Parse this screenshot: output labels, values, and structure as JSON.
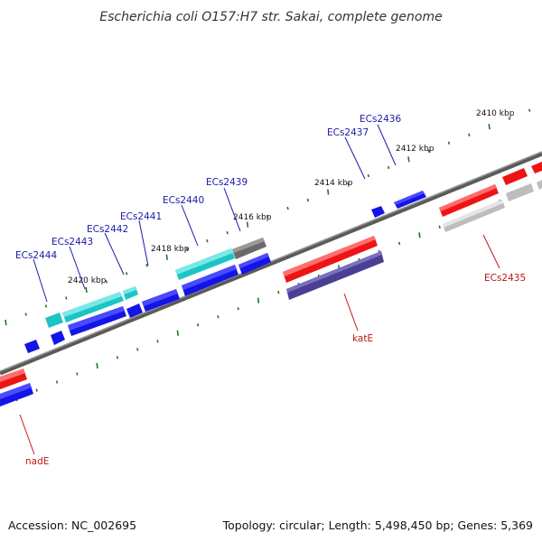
{
  "header": {
    "title": "Escherichia coli O157:H7 str. Sakai, complete genome"
  },
  "footer": {
    "accession": "Accession: NC_002695",
    "stats": "Topology: circular; Length: 5,498,450 bp; Genes: 5,369"
  },
  "scale_labels": {
    "kbp_2410": "2410 kbp",
    "kbp_2412": "2412 kbp",
    "kbp_2414": "2414 kbp",
    "kbp_2416": "2416 kbp",
    "kbp_2418": "2418 kbp",
    "kbp_2420": "2420 kbp"
  },
  "gene_labels": {
    "ECs2436": "ECs2436",
    "ECs2437": "ECs2437",
    "ECs2439": "ECs2439",
    "ECs2440": "ECs2440",
    "ECs2441": "ECs2441",
    "ECs2442": "ECs2442",
    "ECs2443": "ECs2443",
    "ECs2444": "ECs2444",
    "ECs2435": "ECs2435",
    "katE": "katE",
    "nadE": "nadE"
  },
  "colors": {
    "cyan": "#1cc4c4",
    "blue": "#1414e8",
    "red": "#ee1414",
    "gray": "#6a6a6a",
    "lightgray": "#bdbdbd",
    "slate": "#4a3f94",
    "tick_green": "#1f7a1f",
    "backbone": "#7a7a7a"
  }
}
